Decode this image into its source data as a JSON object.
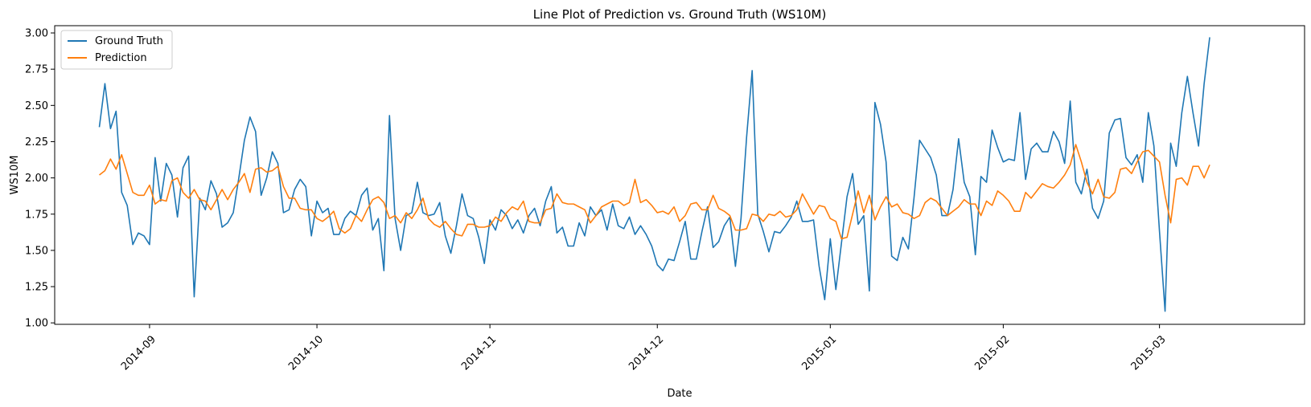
{
  "chart_data": {
    "type": "line",
    "title": "Line Plot of Prediction vs. Ground Truth (WS10M)",
    "xlabel": "Date",
    "ylabel": "WS10M",
    "start_date": "2014-08-23",
    "x_ticks": [
      "2014-09",
      "2014-10",
      "2014-11",
      "2014-12",
      "2015-01",
      "2015-02",
      "2015-03"
    ],
    "y_ticks": [
      "1.00",
      "1.25",
      "1.50",
      "1.75",
      "2.00",
      "2.25",
      "2.50",
      "2.75",
      "3.00"
    ],
    "ylim": [
      0.99,
      3.05
    ],
    "xlim": [
      "2014-08-15",
      "2015-03-27"
    ],
    "legend_position": "top-left",
    "grid": false,
    "series": [
      {
        "name": "Ground Truth",
        "color": "#1f77b4",
        "values": [
          2.35,
          2.65,
          2.34,
          2.46,
          1.9,
          1.81,
          1.54,
          1.62,
          1.6,
          1.54,
          2.14,
          1.84,
          2.1,
          2.02,
          1.73,
          2.07,
          2.15,
          1.18,
          1.86,
          1.78,
          1.98,
          1.89,
          1.66,
          1.69,
          1.76,
          2.0,
          2.26,
          2.42,
          2.32,
          1.88,
          2.0,
          2.18,
          2.1,
          1.76,
          1.78,
          1.92,
          1.99,
          1.94,
          1.6,
          1.84,
          1.76,
          1.79,
          1.61,
          1.61,
          1.72,
          1.77,
          1.74,
          1.88,
          1.93,
          1.64,
          1.72,
          1.36,
          2.43,
          1.72,
          1.5,
          1.74,
          1.76,
          1.97,
          1.76,
          1.74,
          1.75,
          1.83,
          1.6,
          1.48,
          1.67,
          1.89,
          1.74,
          1.72,
          1.59,
          1.41,
          1.71,
          1.64,
          1.78,
          1.74,
          1.65,
          1.71,
          1.62,
          1.74,
          1.79,
          1.67,
          1.84,
          1.94,
          1.62,
          1.66,
          1.53,
          1.53,
          1.69,
          1.6,
          1.8,
          1.74,
          1.78,
          1.64,
          1.82,
          1.67,
          1.65,
          1.73,
          1.61,
          1.67,
          1.61,
          1.53,
          1.4,
          1.36,
          1.44,
          1.43,
          1.56,
          1.7,
          1.44,
          1.44,
          1.63,
          1.8,
          1.52,
          1.56,
          1.67,
          1.73,
          1.39,
          1.72,
          2.28,
          2.74,
          1.75,
          1.63,
          1.49,
          1.63,
          1.62,
          1.67,
          1.73,
          1.84,
          1.7,
          1.7,
          1.71,
          1.39,
          1.16,
          1.58,
          1.23,
          1.55,
          1.87,
          2.03,
          1.68,
          1.74,
          1.22,
          2.52,
          2.37,
          2.11,
          1.46,
          1.43,
          1.59,
          1.51,
          1.86,
          2.26,
          2.2,
          2.14,
          2.02,
          1.74,
          1.74,
          1.92,
          2.27,
          1.97,
          1.87,
          1.47,
          2.01,
          1.97,
          2.33,
          2.21,
          2.11,
          2.13,
          2.12,
          2.45,
          1.99,
          2.2,
          2.24,
          2.18,
          2.18,
          2.32,
          2.25,
          2.1,
          2.53,
          1.97,
          1.89,
          2.06,
          1.79,
          1.72,
          1.84,
          2.31,
          2.4,
          2.41,
          2.14,
          2.09,
          2.16,
          1.97,
          2.45,
          2.22,
          1.63,
          1.08,
          2.24,
          2.08,
          2.45,
          2.7,
          2.45,
          2.22,
          2.65,
          2.97
        ]
      },
      {
        "name": "Prediction",
        "color": "#ff7f0e",
        "values": [
          2.02,
          2.05,
          2.13,
          2.06,
          2.16,
          2.03,
          1.9,
          1.88,
          1.88,
          1.95,
          1.82,
          1.85,
          1.84,
          1.98,
          2.0,
          1.9,
          1.86,
          1.92,
          1.85,
          1.84,
          1.78,
          1.85,
          1.92,
          1.85,
          1.92,
          1.97,
          2.03,
          1.9,
          2.06,
          2.07,
          2.04,
          2.05,
          2.08,
          1.94,
          1.86,
          1.86,
          1.79,
          1.78,
          1.78,
          1.72,
          1.7,
          1.73,
          1.77,
          1.65,
          1.62,
          1.65,
          1.74,
          1.7,
          1.78,
          1.85,
          1.87,
          1.83,
          1.72,
          1.74,
          1.69,
          1.76,
          1.72,
          1.78,
          1.86,
          1.72,
          1.68,
          1.66,
          1.7,
          1.65,
          1.61,
          1.6,
          1.68,
          1.68,
          1.66,
          1.66,
          1.67,
          1.73,
          1.7,
          1.76,
          1.8,
          1.78,
          1.84,
          1.7,
          1.69,
          1.69,
          1.78,
          1.79,
          1.89,
          1.83,
          1.82,
          1.82,
          1.8,
          1.78,
          1.69,
          1.74,
          1.8,
          1.82,
          1.84,
          1.84,
          1.81,
          1.83,
          1.99,
          1.83,
          1.85,
          1.81,
          1.76,
          1.77,
          1.75,
          1.8,
          1.7,
          1.74,
          1.82,
          1.83,
          1.78,
          1.78,
          1.88,
          1.79,
          1.77,
          1.74,
          1.64,
          1.64,
          1.65,
          1.75,
          1.74,
          1.7,
          1.75,
          1.74,
          1.77,
          1.73,
          1.74,
          1.78,
          1.89,
          1.82,
          1.75,
          1.81,
          1.8,
          1.72,
          1.7,
          1.58,
          1.59,
          1.75,
          1.91,
          1.76,
          1.88,
          1.71,
          1.8,
          1.87,
          1.8,
          1.82,
          1.76,
          1.75,
          1.72,
          1.74,
          1.83,
          1.86,
          1.84,
          1.79,
          1.74,
          1.77,
          1.8,
          1.85,
          1.82,
          1.82,
          1.74,
          1.84,
          1.81,
          1.91,
          1.88,
          1.84,
          1.77,
          1.77,
          1.9,
          1.86,
          1.91,
          1.96,
          1.94,
          1.93,
          1.97,
          2.02,
          2.09,
          2.23,
          2.11,
          1.97,
          1.89,
          1.99,
          1.87,
          1.86,
          1.9,
          2.06,
          2.07,
          2.03,
          2.11,
          2.18,
          2.19,
          2.15,
          2.11,
          1.88,
          1.69,
          1.99,
          2.0,
          1.95,
          2.08,
          2.08,
          2.0,
          2.09
        ]
      }
    ]
  }
}
